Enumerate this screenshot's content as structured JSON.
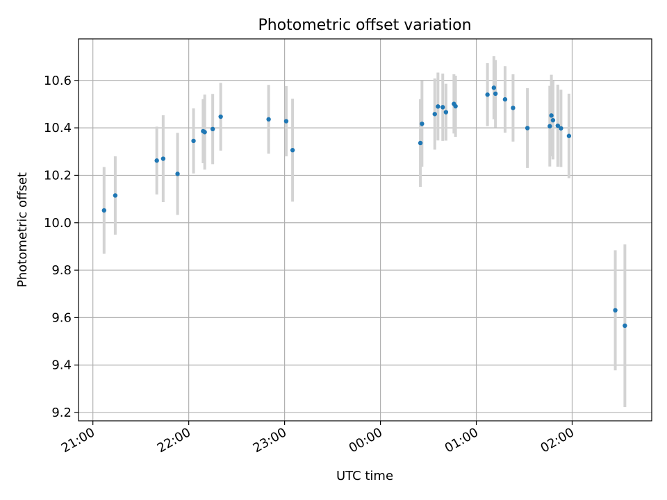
{
  "chart_data": {
    "type": "scatter",
    "title": "Photometric offset variation",
    "xlabel": "UTC time",
    "ylabel": "Photometric offset",
    "grid": true,
    "x_ticks": [
      "21:00",
      "22:00",
      "23:00",
      "00:00",
      "01:00",
      "02:00"
    ],
    "x_tick_hours": [
      0,
      1,
      2,
      3,
      4,
      5
    ],
    "x_tick_rotation_deg": 30,
    "y_ticks": [
      "9.2",
      "9.4",
      "9.6",
      "9.8",
      "10.0",
      "10.2",
      "10.4",
      "10.6"
    ],
    "y_tick_values": [
      9.2,
      9.4,
      9.6,
      9.8,
      10.0,
      10.2,
      10.4,
      10.6
    ],
    "xlim_hours": [
      -0.15,
      5.83
    ],
    "ylim": [
      9.165,
      10.775
    ],
    "colors": {
      "points": "#1f77b4",
      "errorbars": "#d3d3d3",
      "grid": "#b0b0b0"
    },
    "points": [
      {
        "t": "21:07",
        "y": 10.052,
        "yerr": 0.183
      },
      {
        "t": "21:14",
        "y": 10.115,
        "yerr": 0.165
      },
      {
        "t": "21:40",
        "y": 10.262,
        "yerr": 0.143
      },
      {
        "t": "21:44",
        "y": 10.27,
        "yerr": 0.183
      },
      {
        "t": "21:53",
        "y": 10.206,
        "yerr": 0.173
      },
      {
        "t": "22:03",
        "y": 10.345,
        "yerr": 0.137
      },
      {
        "t": "22:09",
        "y": 10.386,
        "yerr": 0.135
      },
      {
        "t": "22:10",
        "y": 10.382,
        "yerr": 0.158
      },
      {
        "t": "22:15",
        "y": 10.395,
        "yerr": 0.148
      },
      {
        "t": "22:20",
        "y": 10.447,
        "yerr": 0.143
      },
      {
        "t": "22:50",
        "y": 10.436,
        "yerr": 0.145
      },
      {
        "t": "23:01",
        "y": 10.428,
        "yerr": 0.148
      },
      {
        "t": "23:05",
        "y": 10.306,
        "yerr": 0.217
      },
      {
        "t": "00:25",
        "y": 10.336,
        "yerr": 0.185
      },
      {
        "t": "00:26",
        "y": 10.417,
        "yerr": 0.181
      },
      {
        "t": "00:34",
        "y": 10.458,
        "yerr": 0.15
      },
      {
        "t": "00:36",
        "y": 10.49,
        "yerr": 0.143
      },
      {
        "t": "00:39",
        "y": 10.487,
        "yerr": 0.142
      },
      {
        "t": "00:41",
        "y": 10.466,
        "yerr": 0.12
      },
      {
        "t": "00:46",
        "y": 10.501,
        "yerr": 0.125
      },
      {
        "t": "00:47",
        "y": 10.491,
        "yerr": 0.129
      },
      {
        "t": "01:07",
        "y": 10.54,
        "yerr": 0.133
      },
      {
        "t": "01:11",
        "y": 10.569,
        "yerr": 0.133
      },
      {
        "t": "01:12",
        "y": 10.544,
        "yerr": 0.142
      },
      {
        "t": "01:18",
        "y": 10.52,
        "yerr": 0.14
      },
      {
        "t": "01:23",
        "y": 10.484,
        "yerr": 0.142
      },
      {
        "t": "01:32",
        "y": 10.399,
        "yerr": 0.168
      },
      {
        "t": "01:46",
        "y": 10.407,
        "yerr": 0.17
      },
      {
        "t": "01:47",
        "y": 10.452,
        "yerr": 0.172
      },
      {
        "t": "01:48",
        "y": 10.432,
        "yerr": 0.165
      },
      {
        "t": "01:51",
        "y": 10.409,
        "yerr": 0.173
      },
      {
        "t": "01:53",
        "y": 10.398,
        "yerr": 0.163
      },
      {
        "t": "01:58",
        "y": 10.366,
        "yerr": 0.178
      },
      {
        "t": "02:27",
        "y": 9.631,
        "yerr": 0.253
      },
      {
        "t": "02:33",
        "y": 9.566,
        "yerr": 0.343
      }
    ]
  }
}
